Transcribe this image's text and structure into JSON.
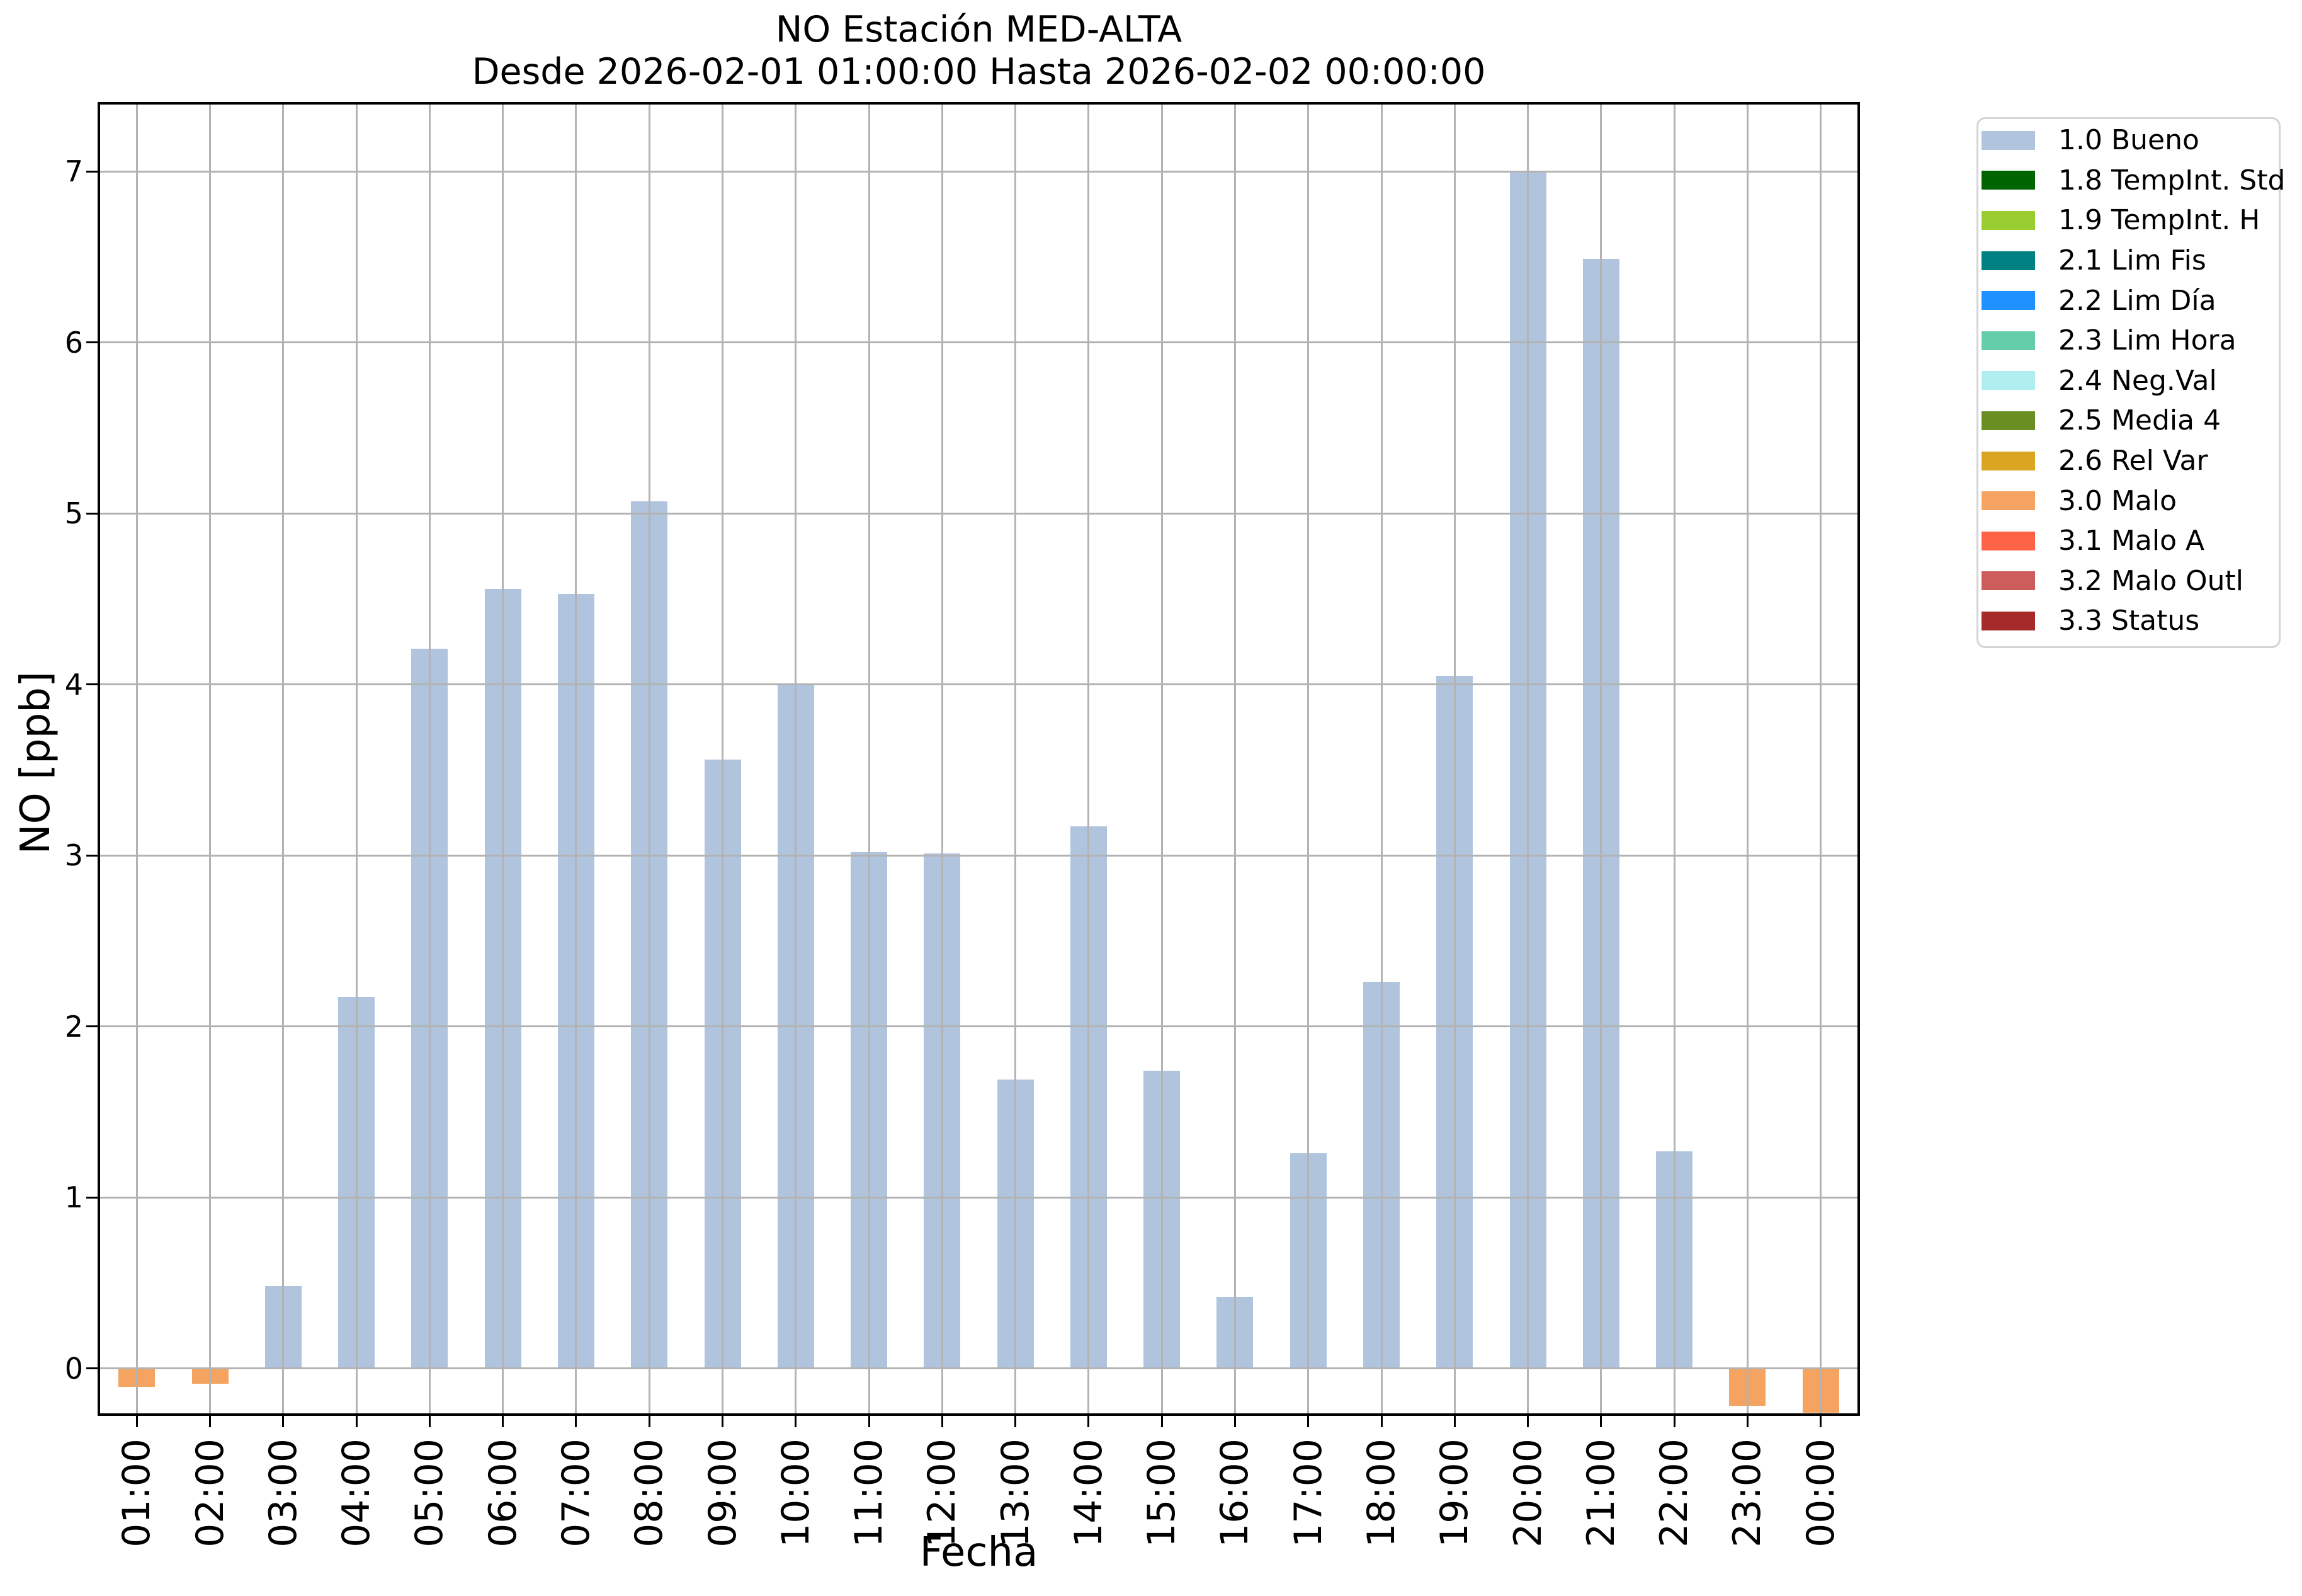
{
  "title": {
    "line1": "NO Estación MED-ALTA",
    "line2": "Desde 2026-02-01 01:00:00 Hasta 2026-02-02 00:00:00"
  },
  "axes": {
    "xlabel": "Fecha",
    "ylabel": "NO [ppb]"
  },
  "chart_data": {
    "type": "bar",
    "title": "NO Estación MED-ALTA",
    "subtitle": "Desde 2026-02-01 01:00:00 Hasta 2026-02-02 00:00:00",
    "xlabel": "Fecha",
    "ylabel": "NO [ppb]",
    "categories": [
      "01:00",
      "02:00",
      "03:00",
      "04:00",
      "05:00",
      "06:00",
      "07:00",
      "08:00",
      "09:00",
      "10:00",
      "11:00",
      "12:00",
      "13:00",
      "14:00",
      "15:00",
      "16:00",
      "17:00",
      "18:00",
      "19:00",
      "20:00",
      "21:00",
      "22:00",
      "23:00",
      "00:00"
    ],
    "values": [
      -0.11,
      -0.09,
      0.48,
      2.17,
      4.21,
      4.56,
      4.53,
      5.07,
      3.56,
      4.0,
      3.02,
      3.01,
      1.69,
      3.17,
      1.74,
      0.42,
      1.26,
      2.26,
      4.05,
      7.0,
      6.49,
      1.27,
      -0.22,
      -0.26
    ],
    "flags": [
      "3.0 Malo",
      "3.0 Malo",
      "1.0 Bueno",
      "1.0 Bueno",
      "1.0 Bueno",
      "1.0 Bueno",
      "1.0 Bueno",
      "1.0 Bueno",
      "1.0 Bueno",
      "1.0 Bueno",
      "1.0 Bueno",
      "1.0 Bueno",
      "1.0 Bueno",
      "1.0 Bueno",
      "1.0 Bueno",
      "1.0 Bueno",
      "1.0 Bueno",
      "1.0 Bueno",
      "1.0 Bueno",
      "1.0 Bueno",
      "1.0 Bueno",
      "1.0 Bueno",
      "3.0 Malo",
      "3.0 Malo"
    ],
    "flag_colors": {
      "1.0 Bueno": "#b0c4de",
      "3.0 Malo": "#f4a460"
    },
    "yticks": [
      0,
      1,
      2,
      3,
      4,
      5,
      6,
      7
    ],
    "ylim": [
      -0.263,
      7.391
    ],
    "grid": true,
    "grid_color": "#b3b3b3",
    "legend_position": "outside upper right"
  },
  "legend": {
    "items": [
      {
        "label": "1.0 Bueno",
        "color": "#b0c4de"
      },
      {
        "label": "1.8 TempInt. Std",
        "color": "#006400"
      },
      {
        "label": "1.9 TempInt. H",
        "color": "#9acd32"
      },
      {
        "label": "2.1 Lim Fis",
        "color": "#008080"
      },
      {
        "label": "2.2 Lim Día",
        "color": "#1e90ff"
      },
      {
        "label": "2.3 Lim Hora",
        "color": "#66cdaa"
      },
      {
        "label": "2.4 Neg.Val",
        "color": "#afeeee"
      },
      {
        "label": "2.5 Media 4",
        "color": "#6b8e23"
      },
      {
        "label": "2.6 Rel Var",
        "color": "#daa520"
      },
      {
        "label": "3.0 Malo",
        "color": "#f4a460"
      },
      {
        "label": "3.1 Malo A",
        "color": "#ff6347"
      },
      {
        "label": "3.2 Malo Outl",
        "color": "#cd5c5c"
      },
      {
        "label": "3.3 Status",
        "color": "#a52a2a"
      }
    ]
  }
}
